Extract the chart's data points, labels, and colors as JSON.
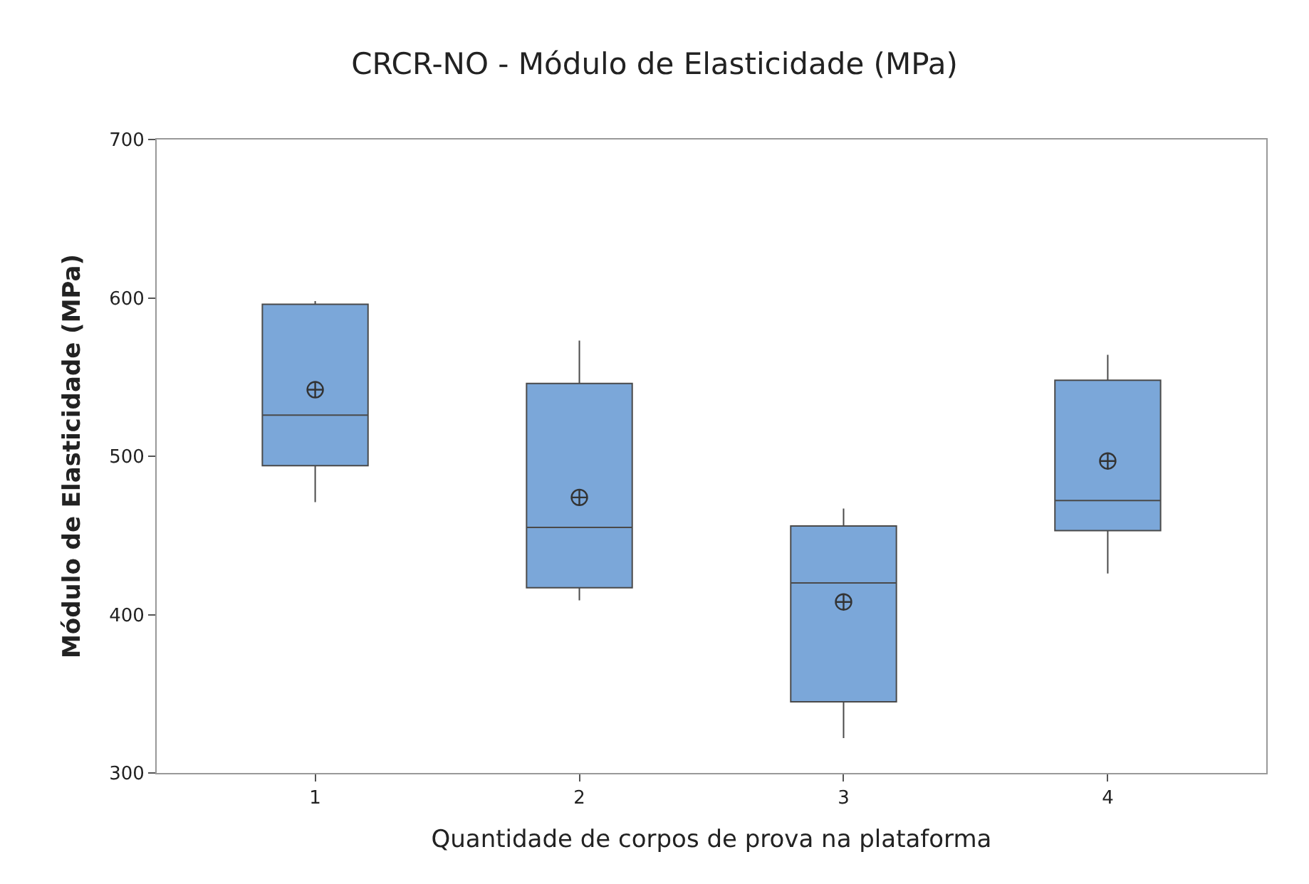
{
  "chart_data": {
    "type": "box",
    "title": "CRCR-NO - Módulo de Elasticidade (MPa)",
    "xlabel": "Quantidade de corpos de prova na plataforma",
    "ylabel": "Módulo de Elasticidade (MPa)",
    "categories": [
      "1",
      "2",
      "3",
      "4"
    ],
    "series": [
      {
        "color": "#7ba7d9",
        "boxes": [
          {
            "low": 471,
            "q1": 494,
            "median": 526,
            "q3": 596,
            "high": 598,
            "mean": 542
          },
          {
            "low": 409,
            "q1": 417,
            "median": 455,
            "q3": 546,
            "high": 573,
            "mean": 474
          },
          {
            "low": 322,
            "q1": 345,
            "median": 420,
            "q3": 456,
            "high": 467,
            "mean": 408
          },
          {
            "low": 426,
            "q1": 453,
            "median": 472,
            "q3": 548,
            "high": 564,
            "mean": 497
          }
        ]
      }
    ],
    "ylim": [
      300,
      700
    ],
    "yticks": [
      300,
      400,
      500,
      600,
      700
    ]
  }
}
